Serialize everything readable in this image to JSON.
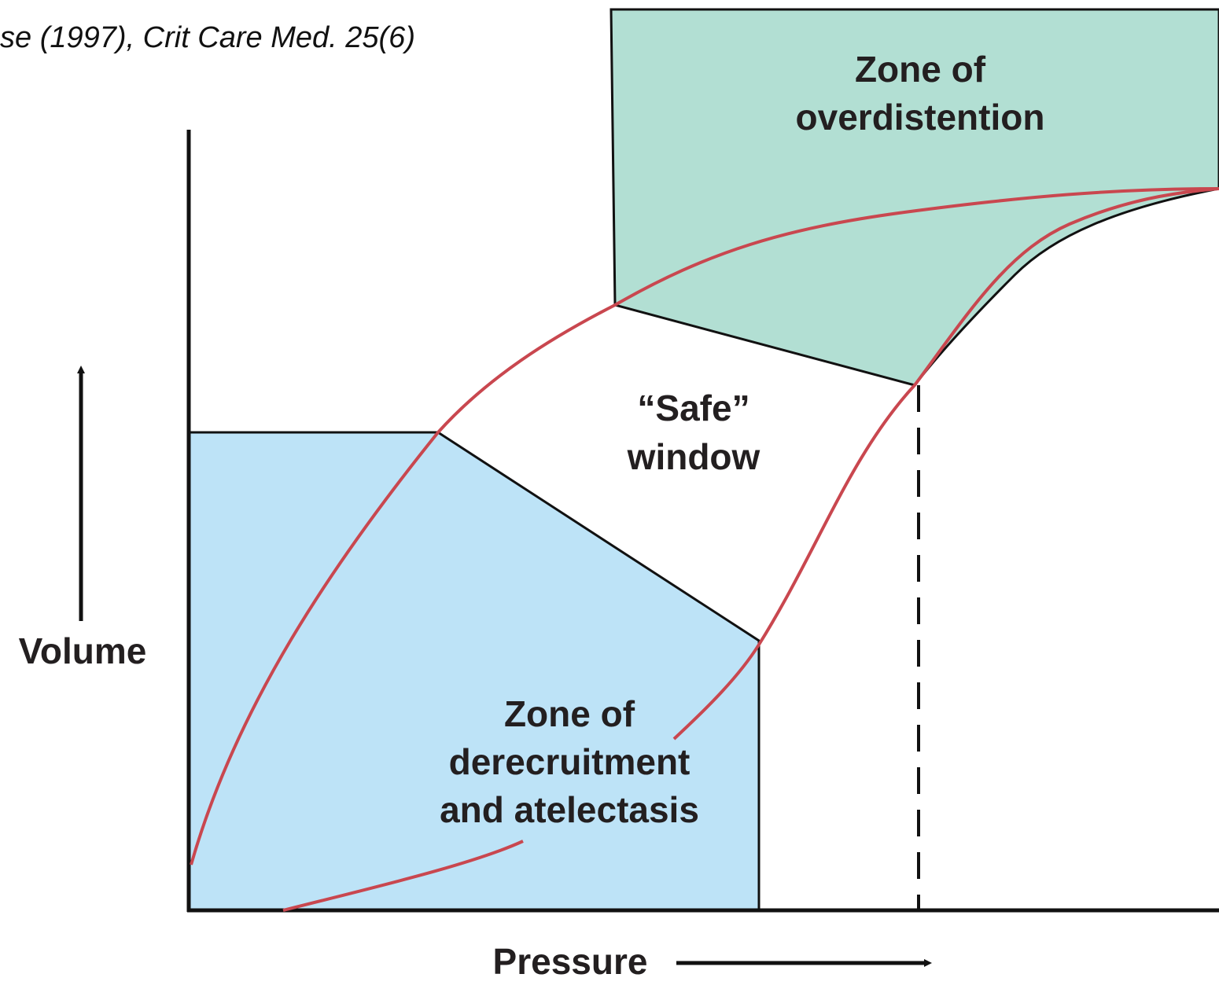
{
  "citation": "se (1997), Crit Care Med. 25(6)",
  "zones": {
    "overdistention": [
      "Zone of",
      "overdistention"
    ],
    "safe": [
      "“Safe”",
      "window"
    ],
    "derecruitment": [
      "Zone of",
      "derecruitment",
      "and atelectasis"
    ]
  },
  "axes": {
    "y": "Volume",
    "x": "Pressure"
  }
}
